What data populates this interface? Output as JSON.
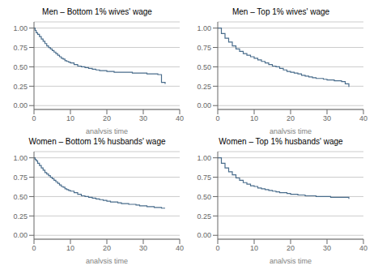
{
  "chart_data": [
    {
      "type": "step",
      "title": "Men – Bottom 1% wives' wage",
      "xlabel": "analysis time",
      "color": "#4a6d8c",
      "grid": "y",
      "xlim": [
        0,
        40
      ],
      "ylim": [
        -0.05,
        1.08
      ],
      "xticks": [
        0,
        10,
        20,
        30,
        40
      ],
      "yticks": [
        {
          "value": 0.0,
          "label": "0.00"
        },
        {
          "value": 0.25,
          "label": "0.25"
        },
        {
          "value": 0.5,
          "label": "0.50"
        },
        {
          "value": 0.75,
          "label": "0.75"
        },
        {
          "value": 1.0,
          "label": "1.00"
        }
      ],
      "x": [
        0,
        0.3,
        0.6,
        1,
        1.5,
        2,
        2.5,
        3,
        3.5,
        4,
        4.5,
        5,
        5.5,
        6,
        6.5,
        7,
        7.5,
        8,
        8.5,
        9,
        9.5,
        10,
        11,
        12,
        13,
        14,
        15,
        16,
        17,
        18,
        19,
        20,
        21,
        22,
        23,
        24,
        25,
        26,
        27,
        28,
        29,
        30,
        31,
        32,
        33,
        34,
        35,
        36
      ],
      "values": [
        1.0,
        0.97,
        0.94,
        0.92,
        0.89,
        0.86,
        0.83,
        0.8,
        0.77,
        0.75,
        0.73,
        0.71,
        0.69,
        0.67,
        0.65,
        0.63,
        0.61,
        0.6,
        0.58,
        0.57,
        0.56,
        0.55,
        0.53,
        0.51,
        0.5,
        0.49,
        0.48,
        0.47,
        0.46,
        0.45,
        0.45,
        0.44,
        0.44,
        0.43,
        0.43,
        0.43,
        0.43,
        0.43,
        0.42,
        0.42,
        0.42,
        0.42,
        0.41,
        0.41,
        0.41,
        0.4,
        0.3,
        0.28
      ]
    },
    {
      "type": "step",
      "title": "Men – Top 1% wives' wage",
      "xlabel": "analysis time",
      "color": "#4a6d8c",
      "grid": "y",
      "xlim": [
        0,
        40
      ],
      "ylim": [
        -0.05,
        1.08
      ],
      "xticks": [
        0,
        10,
        20,
        30,
        40
      ],
      "yticks": [
        {
          "value": 0.0,
          "label": "0.00"
        },
        {
          "value": 0.25,
          "label": "0.25"
        },
        {
          "value": 0.5,
          "label": "0.50"
        },
        {
          "value": 0.75,
          "label": "0.75"
        },
        {
          "value": 1.0,
          "label": "1.00"
        }
      ],
      "x": [
        0,
        1,
        2,
        3,
        4,
        5,
        6,
        7,
        8,
        9,
        10,
        11,
        12,
        13,
        14,
        15,
        16,
        17,
        18,
        19,
        20,
        21,
        22,
        23,
        24,
        25,
        26,
        27,
        28,
        29,
        30,
        31,
        32,
        33,
        34,
        35,
        36
      ],
      "values": [
        1.0,
        0.93,
        0.87,
        0.82,
        0.77,
        0.73,
        0.7,
        0.67,
        0.65,
        0.63,
        0.61,
        0.59,
        0.57,
        0.55,
        0.53,
        0.51,
        0.5,
        0.48,
        0.46,
        0.44,
        0.43,
        0.42,
        0.41,
        0.39,
        0.38,
        0.37,
        0.36,
        0.35,
        0.35,
        0.34,
        0.33,
        0.33,
        0.32,
        0.32,
        0.31,
        0.28,
        0.24
      ]
    },
    {
      "type": "step",
      "title": "Women – Bottom 1% husbands' wage",
      "xlabel": "analysis time",
      "color": "#4a6d8c",
      "grid": "y",
      "xlim": [
        0,
        40
      ],
      "ylim": [
        -0.05,
        1.08
      ],
      "xticks": [
        0,
        10,
        20,
        30,
        40
      ],
      "yticks": [
        {
          "value": 0.0,
          "label": "0.00"
        },
        {
          "value": 0.25,
          "label": "0.25"
        },
        {
          "value": 0.5,
          "label": "0.50"
        },
        {
          "value": 0.75,
          "label": "0.75"
        },
        {
          "value": 1.0,
          "label": "1.00"
        }
      ],
      "x": [
        0,
        0.3,
        0.6,
        1,
        1.5,
        2,
        2.5,
        3,
        3.5,
        4,
        4.5,
        5,
        5.5,
        6,
        6.5,
        7,
        7.5,
        8,
        8.5,
        9,
        9.5,
        10,
        11,
        12,
        13,
        14,
        15,
        16,
        17,
        18,
        19,
        20,
        21,
        22,
        23,
        24,
        25,
        26,
        27,
        28,
        29,
        30,
        31,
        32,
        33,
        34,
        35,
        36
      ],
      "values": [
        1.0,
        0.98,
        0.96,
        0.93,
        0.9,
        0.87,
        0.84,
        0.81,
        0.79,
        0.77,
        0.75,
        0.73,
        0.71,
        0.69,
        0.67,
        0.65,
        0.63,
        0.62,
        0.6,
        0.59,
        0.58,
        0.57,
        0.55,
        0.53,
        0.51,
        0.5,
        0.49,
        0.48,
        0.47,
        0.46,
        0.45,
        0.44,
        0.43,
        0.43,
        0.42,
        0.41,
        0.41,
        0.4,
        0.4,
        0.39,
        0.38,
        0.38,
        0.37,
        0.37,
        0.36,
        0.36,
        0.35,
        0.35
      ]
    },
    {
      "type": "step",
      "title": "Women – Top 1% husbands' wage",
      "xlabel": "analysis time",
      "color": "#4a6d8c",
      "grid": "y",
      "xlim": [
        0,
        40
      ],
      "ylim": [
        -0.05,
        1.08
      ],
      "xticks": [
        0,
        10,
        20,
        30,
        40
      ],
      "yticks": [
        {
          "value": 0.0,
          "label": "0.00"
        },
        {
          "value": 0.25,
          "label": "0.25"
        },
        {
          "value": 0.5,
          "label": "0.50"
        },
        {
          "value": 0.75,
          "label": "0.75"
        },
        {
          "value": 1.0,
          "label": "1.00"
        }
      ],
      "x": [
        0,
        1,
        2,
        3,
        4,
        5,
        6,
        7,
        8,
        9,
        10,
        11,
        12,
        13,
        14,
        15,
        16,
        17,
        18,
        19,
        20,
        21,
        22,
        23,
        24,
        25,
        26,
        27,
        28,
        29,
        30,
        31,
        32,
        33,
        34,
        35,
        36
      ],
      "values": [
        1.0,
        0.93,
        0.87,
        0.82,
        0.78,
        0.74,
        0.71,
        0.68,
        0.66,
        0.64,
        0.63,
        0.61,
        0.6,
        0.59,
        0.58,
        0.57,
        0.56,
        0.55,
        0.55,
        0.54,
        0.53,
        0.53,
        0.52,
        0.52,
        0.51,
        0.51,
        0.51,
        0.5,
        0.5,
        0.5,
        0.5,
        0.49,
        0.49,
        0.49,
        0.49,
        0.49,
        0.47
      ]
    }
  ]
}
